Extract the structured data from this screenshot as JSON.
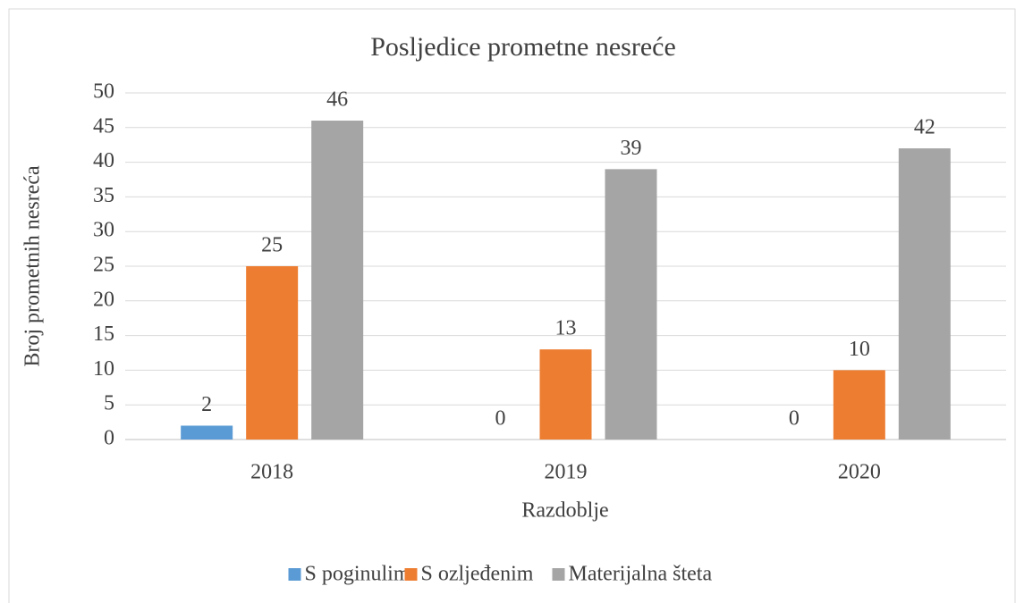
{
  "chart_data": {
    "type": "grouped_bar",
    "title": "Posljedice prometne nesreće",
    "x_label": "Razdoblje",
    "y_label": "Broj prometnih nesreća",
    "categories": [
      "2018",
      "2019",
      "2020"
    ],
    "series": [
      {
        "name": "S poginulim",
        "color": "#5b9bd5",
        "values": [
          2,
          0,
          0
        ]
      },
      {
        "name": "S ozljeđenim",
        "color": "#ed7d31",
        "values": [
          25,
          13,
          10
        ]
      },
      {
        "name": "Materijalna šteta",
        "color": "#a5a5a5",
        "values": [
          46,
          39,
          42
        ]
      }
    ],
    "ylim": [
      0,
      50
    ],
    "yticks": [
      0,
      5,
      10,
      15,
      20,
      25,
      30,
      35,
      40,
      45,
      50
    ],
    "grid": true,
    "legend": "bottom"
  }
}
